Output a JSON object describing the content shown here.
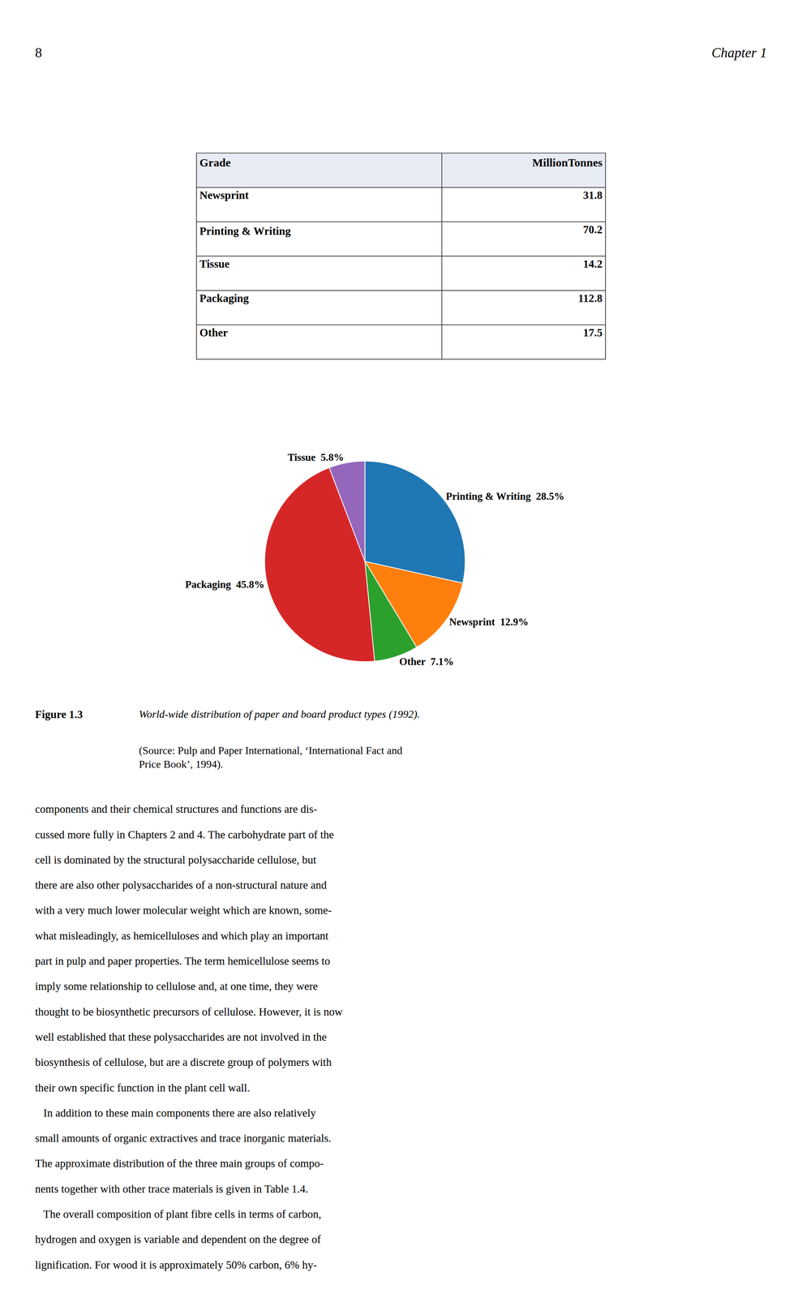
{
  "chart_data": [
    {
      "type": "pie",
      "title": "Figure 1.3",
      "subtitle": "World-wide distribution of paper and board product types (1992).",
      "categories": [
        "Printing & Writing",
        "Newsprint",
        "Other",
        "Packaging",
        "Tissue"
      ],
      "values": [
        28.5,
        12.9,
        7.1,
        45.8,
        5.8
      ],
      "value_labels": [
        "Printing & Writing  28.5%",
        "Newsprint  12.9%",
        "Other  7.1%",
        "Packaging  45.8%",
        "Tissue  5.8%"
      ],
      "data_labels": true,
      "annotations": [
        "8",
        "Chapter 1",
        "(Source: Pulp and Paper International, ‘International Fact and\nPrice Book’, 1994).",
        "components and their chemical structures and functions are dis-",
        "cussed more fully in Chapters 2 and 4. The carbohydrate part of the",
        "cell is dominated by the structural polysaccharide cellulose, but",
        "there are also other polysaccharides of a non-structural nature and",
        "with a very much lower molecular weight which are known, some-",
        "what misleadingly, as hemicelluloses and which play an important",
        "part in pulp and paper properties. The term hemicellulose seems to",
        "imply some relationship to cellulose and, at one time, they were",
        "thought to be biosynthetic precursors of cellulose. However, it is now",
        "well established that these polysaccharides are not involved in the",
        "biosynthesis of cellulose, but are a discrete group of polymers with",
        "their own specific function in the plant cell wall.",
        "   In addition to these main components there are also relatively",
        "small amounts of organic extractives and trace inorganic materials.",
        "The approximate distribution of the three main groups of compo-",
        "nents together with other trace materials is given in Table 1.4.",
        "   The overall composition of plant fibre cells in terms of carbon,",
        "hydrogen and oxygen is variable and dependent on the degree of",
        "lignification. For wood it is approximately 50% carbon, 6% hy-"
      ]
    },
    {
      "type": "table",
      "columns": [
        "Grade",
        "MillionTonnes"
      ],
      "categories": [
        "Newsprint",
        "Printing & Writing",
        "Tissue",
        "Packaging",
        "Other"
      ],
      "values": [
        31.8,
        70.2,
        14.2,
        112.8,
        17.5
      ]
    }
  ]
}
